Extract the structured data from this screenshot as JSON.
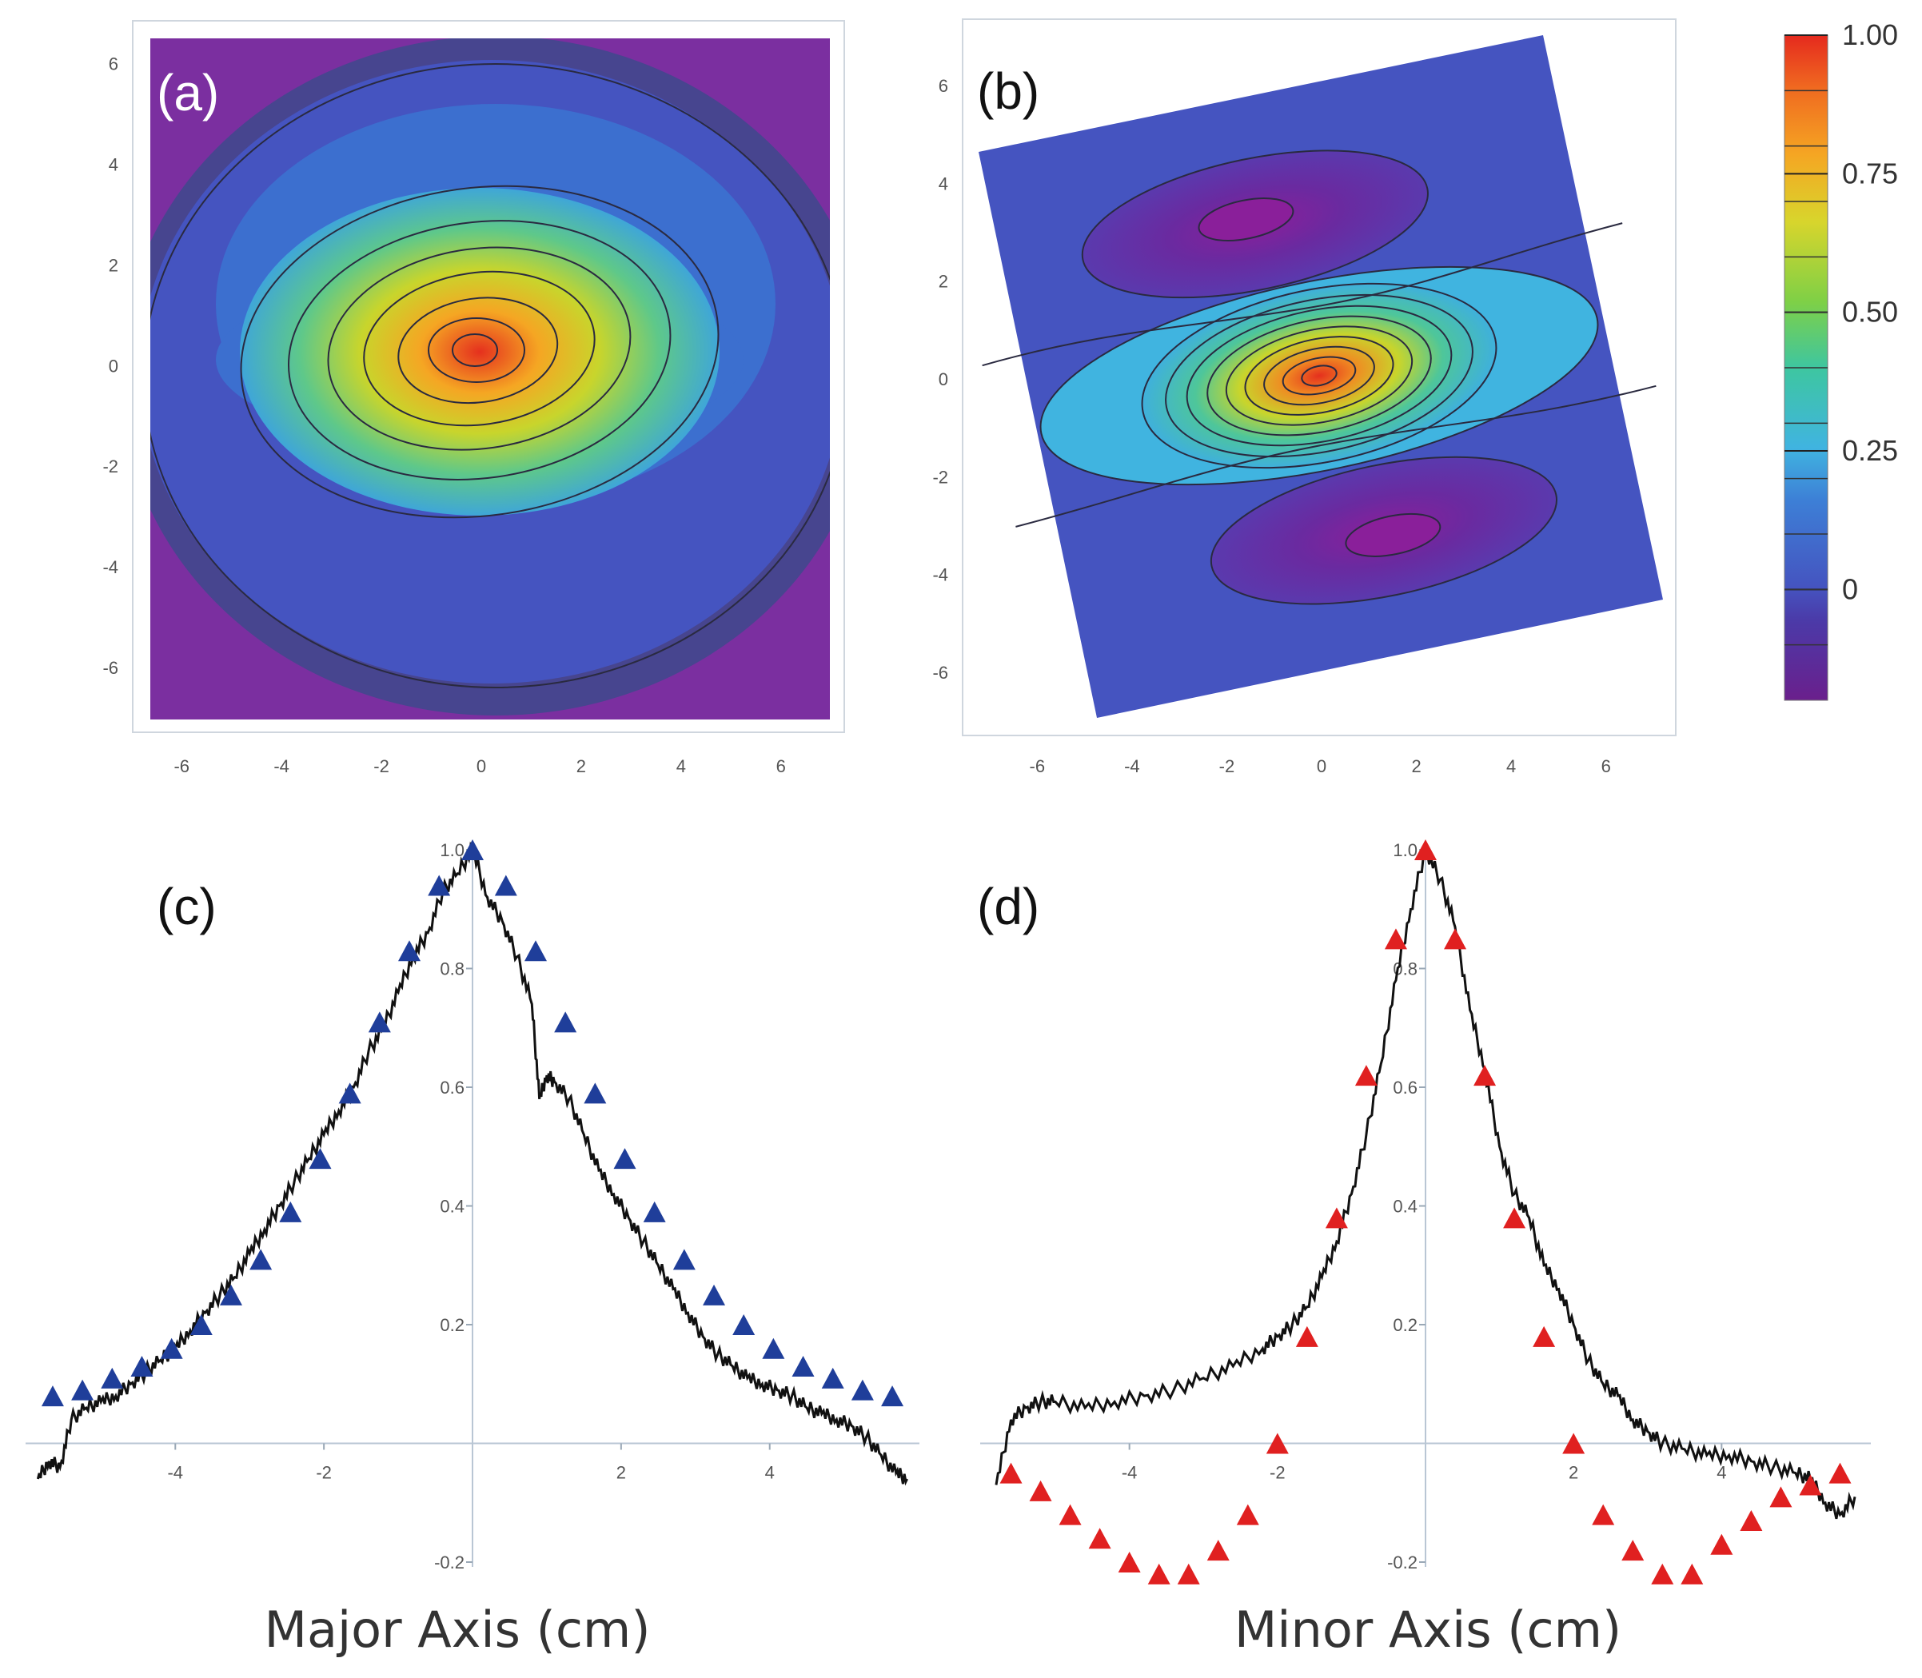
{
  "colors": {
    "magenta_bg": "#7b2fa0",
    "blue_bg": "#4554c0",
    "cyan": "#40b4e0",
    "triangle_blue": "#1f3e9a",
    "triangle_red": "#e02020",
    "profile_line": "#111111"
  },
  "colorbar": {
    "ticks": [
      {
        "value": "1.00",
        "level": 1.0
      },
      {
        "value": "0.75",
        "level": 0.75
      },
      {
        "value": "0.50",
        "level": 0.5
      },
      {
        "value": "0.25",
        "level": 0.25
      },
      {
        "value": "0",
        "level": 0.0
      }
    ],
    "min": -0.2,
    "max": 1.0
  },
  "chart_data": [
    {
      "panel": "(a)",
      "type": "heatmap",
      "xlim": [
        -6.5,
        6.5
      ],
      "ylim": [
        -7,
        6.5
      ],
      "xticks": [
        "-6",
        "-4",
        "-2",
        "0",
        "2",
        "4",
        "6"
      ],
      "yticks": [
        "6",
        "4",
        "2",
        "0",
        "-2",
        "-4",
        "-6"
      ],
      "peak": {
        "x": 0,
        "y": 0,
        "value": 1.0
      }
    },
    {
      "panel": "(b)",
      "type": "heatmap",
      "xlim": [
        -7,
        7
      ],
      "ylim": [
        -7,
        7
      ],
      "xticks": [
        "-6",
        "-4",
        "-2",
        "0",
        "2",
        "4",
        "6"
      ],
      "yticks": [
        "6",
        "4",
        "2",
        "0",
        "-2",
        "-4",
        "-6"
      ],
      "peak": {
        "x": 0,
        "y": 0,
        "value": 1.0
      },
      "minima": [
        {
          "x": -0.5,
          "y": 3.3,
          "value": -0.2
        },
        {
          "x": 0.5,
          "y": -3.5,
          "value": -0.2
        }
      ]
    },
    {
      "panel": "(c)",
      "type": "line",
      "xlabel": "Major Axis (cm)",
      "xlim": [
        -5.8,
        5.8
      ],
      "ylim": [
        -0.2,
        1.0
      ],
      "xticks": [
        "-4",
        "-2",
        "2",
        "4"
      ],
      "yticks": [
        "1.0",
        "0.8",
        "0.6",
        "0.4",
        "0.2",
        "-0.2"
      ],
      "series": [
        {
          "type": "line",
          "x": [
            -5.85,
            -5.7,
            -5.55,
            -5.4,
            -5.2,
            -5.0,
            -4.8,
            -4.6,
            -4.4,
            -4.2,
            -4.0,
            -3.8,
            -3.6,
            -3.4,
            -3.2,
            -3.0,
            -2.8,
            -2.6,
            -2.4,
            -2.2,
            -2.0,
            -1.8,
            -1.6,
            -1.4,
            -1.2,
            -1.0,
            -0.8,
            -0.6,
            -0.4,
            -0.2,
            0.0,
            0.2,
            0.4,
            0.6,
            0.8,
            0.9,
            1.0,
            1.1,
            1.3,
            1.5,
            1.7,
            1.9,
            2.1,
            2.3,
            2.5,
            2.7,
            2.9,
            3.1,
            3.3,
            3.5,
            3.7,
            3.9,
            4.1,
            4.3,
            4.5,
            4.7,
            4.9,
            5.1,
            5.3,
            5.5,
            5.7,
            5.85
          ],
          "y": [
            -0.06,
            -0.03,
            -0.04,
            0.04,
            0.06,
            0.07,
            0.08,
            0.1,
            0.12,
            0.14,
            0.16,
            0.19,
            0.22,
            0.25,
            0.28,
            0.32,
            0.36,
            0.4,
            0.44,
            0.48,
            0.52,
            0.56,
            0.6,
            0.66,
            0.7,
            0.76,
            0.82,
            0.86,
            0.93,
            0.96,
            1.0,
            0.92,
            0.88,
            0.82,
            0.74,
            0.58,
            0.62,
            0.61,
            0.58,
            0.52,
            0.46,
            0.42,
            0.38,
            0.34,
            0.3,
            0.26,
            0.22,
            0.18,
            0.15,
            0.13,
            0.11,
            0.1,
            0.09,
            0.08,
            0.06,
            0.05,
            0.04,
            0.03,
            0.01,
            -0.02,
            -0.05,
            -0.06
          ]
        },
        {
          "type": "scatter",
          "marker": "triangle",
          "x": [
            -5.65,
            -5.25,
            -4.85,
            -4.45,
            -4.05,
            -3.65,
            -3.25,
            -2.85,
            -2.45,
            -2.05,
            -1.65,
            -1.25,
            -0.85,
            -0.45,
            0.0,
            0.45,
            0.85,
            1.25,
            1.65,
            2.05,
            2.45,
            2.85,
            3.25,
            3.65,
            4.05,
            4.45,
            4.85,
            5.25,
            5.65
          ],
          "y": [
            0.08,
            0.09,
            0.11,
            0.13,
            0.16,
            0.2,
            0.25,
            0.31,
            0.39,
            0.48,
            0.59,
            0.71,
            0.83,
            0.94,
            1.0,
            0.94,
            0.83,
            0.71,
            0.59,
            0.48,
            0.39,
            0.31,
            0.25,
            0.2,
            0.16,
            0.13,
            0.11,
            0.09,
            0.08
          ]
        }
      ]
    },
    {
      "panel": "(d)",
      "type": "line",
      "xlabel": "Minor Axis (cm)",
      "xlim": [
        -5.8,
        5.8
      ],
      "ylim": [
        -0.2,
        1.0
      ],
      "xticks": [
        "-4",
        "-2",
        "2",
        "4"
      ],
      "yticks": [
        "1.0",
        "0.8",
        "0.6",
        "0.4",
        "0.2",
        "-0.2"
      ],
      "series": [
        {
          "type": "line",
          "x": [
            -5.8,
            -5.6,
            -5.4,
            -5.2,
            -5.0,
            -4.6,
            -4.2,
            -3.8,
            -3.4,
            -3.0,
            -2.6,
            -2.2,
            -2.0,
            -1.8,
            -1.6,
            -1.4,
            -1.2,
            -1.0,
            -0.8,
            -0.6,
            -0.4,
            -0.2,
            0.0,
            0.2,
            0.4,
            0.6,
            0.8,
            1.0,
            1.2,
            1.4,
            1.6,
            1.8,
            2.0,
            2.2,
            2.4,
            2.6,
            2.8,
            3.0,
            3.2,
            3.5,
            3.8,
            4.1,
            4.4,
            4.7,
            5.0,
            5.2,
            5.4,
            5.6,
            5.8
          ],
          "y": [
            -0.07,
            0.04,
            0.06,
            0.07,
            0.07,
            0.06,
            0.07,
            0.08,
            0.09,
            0.11,
            0.13,
            0.16,
            0.18,
            0.2,
            0.23,
            0.28,
            0.34,
            0.42,
            0.52,
            0.64,
            0.78,
            0.9,
            1.0,
            0.95,
            0.87,
            0.73,
            0.63,
            0.5,
            0.42,
            0.38,
            0.3,
            0.26,
            0.2,
            0.14,
            0.1,
            0.08,
            0.04,
            0.02,
            0.0,
            -0.01,
            -0.02,
            -0.02,
            -0.03,
            -0.04,
            -0.05,
            -0.06,
            -0.1,
            -0.12,
            -0.09
          ]
        },
        {
          "type": "scatter",
          "marker": "triangle",
          "x": [
            -5.6,
            -5.2,
            -4.8,
            -4.4,
            -4.0,
            -3.6,
            -3.2,
            -2.8,
            -2.4,
            -2.0,
            -1.6,
            -1.2,
            -0.8,
            -0.4,
            0.0,
            0.4,
            0.8,
            1.2,
            1.6,
            2.0,
            2.4,
            2.8,
            3.2,
            3.6,
            4.0,
            4.4,
            4.8,
            5.2,
            5.6
          ],
          "y": [
            -0.05,
            -0.08,
            -0.12,
            -0.16,
            -0.2,
            -0.22,
            -0.22,
            -0.18,
            -0.12,
            0.0,
            0.18,
            0.38,
            0.62,
            0.85,
            1.0,
            0.85,
            0.62,
            0.38,
            0.18,
            0.0,
            -0.12,
            -0.18,
            -0.22,
            -0.22,
            -0.17,
            -0.13,
            -0.09,
            -0.07,
            -0.05
          ]
        }
      ]
    }
  ],
  "labels": {
    "a": "(a)",
    "b": "(b)",
    "c": "(c)",
    "d": "(d)",
    "c_xlabel": "Major Axis (cm)",
    "d_xlabel": "Minor Axis (cm)"
  }
}
